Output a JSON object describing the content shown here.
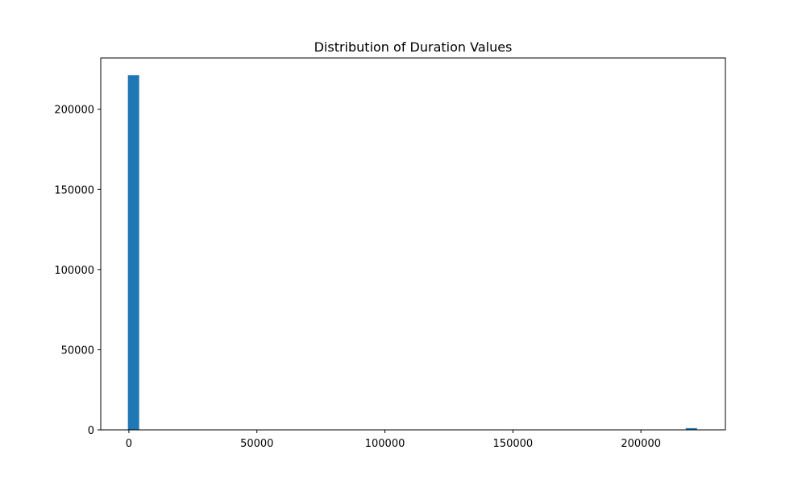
{
  "chart_data": {
    "type": "bar",
    "title": "Distribution of Duration Values",
    "xlabel": "",
    "ylabel": "",
    "xlim": [
      -11000,
      233000
    ],
    "ylim": [
      0,
      232000
    ],
    "xticks": [
      0,
      50000,
      100000,
      150000,
      200000
    ],
    "xtick_labels": [
      "0",
      "50000",
      "100000",
      "150000",
      "200000"
    ],
    "yticks": [
      0,
      50000,
      100000,
      150000,
      200000
    ],
    "ytick_labels": [
      "0",
      "50000",
      "100000",
      "150000",
      "200000"
    ],
    "grid": false,
    "bar_color": "#1f77b4",
    "bins": [
      {
        "x0": -400,
        "x1": 4000,
        "count": 221300
      },
      {
        "x0": 217500,
        "x1": 221900,
        "count": 1100
      }
    ]
  }
}
